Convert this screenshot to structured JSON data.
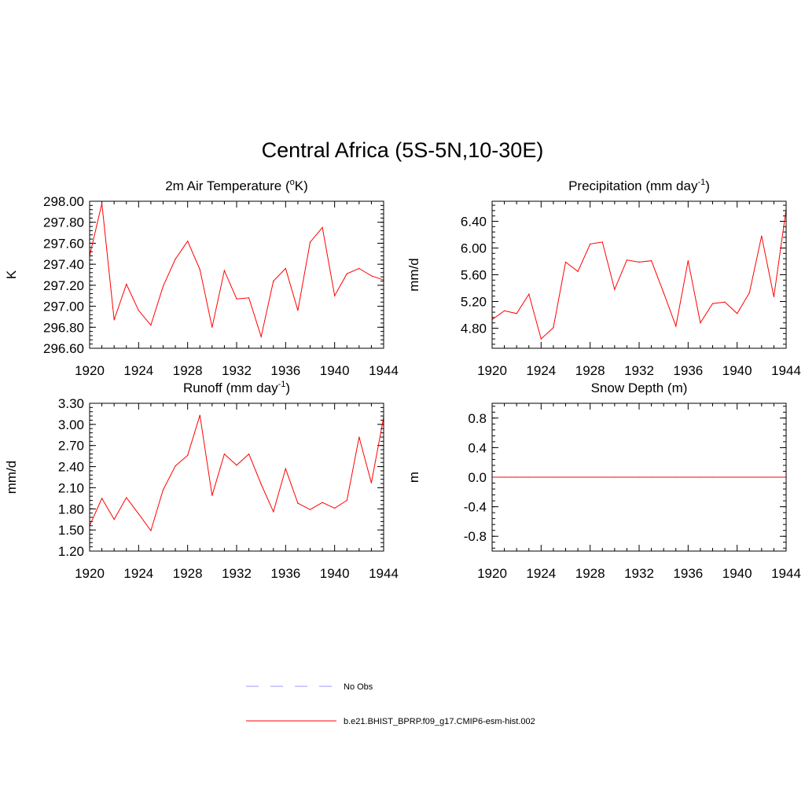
{
  "title": "Central Africa (5S-5N,10-30E)",
  "legend": {
    "items": [
      {
        "label": "No Obs",
        "color": "#9999ff",
        "style": "dashed"
      },
      {
        "label": "b.e21.BHIST_BPRP.f09_g17.CMIP6-esm-hist.002",
        "color": "#ff0000",
        "style": "solid"
      }
    ]
  },
  "chart_data": [
    {
      "type": "line",
      "title": "2m Air Temperature (",
      "title_sup": "o",
      "title_after": "K)",
      "ylabel": "K",
      "xlim": [
        1920,
        1944
      ],
      "ylim": [
        296.6,
        298.0
      ],
      "yticks": [
        296.6,
        296.8,
        297.0,
        297.2,
        297.4,
        297.6,
        297.8,
        298.0
      ],
      "ytick_labels": [
        "296.60",
        "296.80",
        "297.00",
        "297.20",
        "297.40",
        "297.60",
        "297.80",
        "298.00"
      ],
      "xticks": [
        1920,
        1924,
        1928,
        1932,
        1936,
        1940,
        1944
      ],
      "xtick_labels": [
        "1920",
        "1924",
        "1928",
        "1932",
        "1936",
        "1940",
        "1944"
      ],
      "color": "#ff0000",
      "x": [
        1920,
        1921,
        1922,
        1923,
        1924,
        1925,
        1926,
        1927,
        1928,
        1929,
        1930,
        1931,
        1932,
        1933,
        1934,
        1935,
        1936,
        1937,
        1938,
        1939,
        1940,
        1941,
        1942,
        1943,
        1944
      ],
      "values": [
        297.48,
        297.98,
        296.87,
        297.21,
        296.96,
        296.82,
        297.19,
        297.45,
        297.62,
        297.35,
        296.8,
        297.34,
        297.07,
        297.08,
        296.71,
        297.24,
        297.36,
        296.96,
        297.61,
        297.75,
        297.1,
        297.31,
        297.36,
        297.29,
        297.25
      ]
    },
    {
      "type": "line",
      "title": "Precipitation (mm day",
      "title_sup": "-1",
      "title_after": ")",
      "ylabel": "mm/d",
      "xlim": [
        1920,
        1944
      ],
      "ylim": [
        4.5,
        6.7
      ],
      "yticks": [
        4.8,
        5.2,
        5.6,
        6.0,
        6.4
      ],
      "ytick_labels": [
        "4.80",
        "5.20",
        "5.60",
        "6.00",
        "6.40"
      ],
      "xticks": [
        1920,
        1924,
        1928,
        1932,
        1936,
        1940,
        1944
      ],
      "xtick_labels": [
        "1920",
        "1924",
        "1928",
        "1932",
        "1936",
        "1940",
        "1944"
      ],
      "color": "#ff0000",
      "x": [
        1920,
        1921,
        1922,
        1923,
        1924,
        1925,
        1926,
        1927,
        1928,
        1929,
        1930,
        1931,
        1932,
        1933,
        1934,
        1935,
        1936,
        1937,
        1938,
        1939,
        1940,
        1941,
        1942,
        1943,
        1944
      ],
      "values": [
        4.93,
        5.06,
        5.02,
        5.31,
        4.64,
        4.81,
        5.79,
        5.65,
        6.06,
        6.09,
        5.38,
        5.82,
        5.79,
        5.81,
        5.33,
        4.83,
        5.81,
        4.88,
        5.17,
        5.19,
        5.02,
        5.33,
        6.18,
        5.27,
        6.58
      ]
    },
    {
      "type": "line",
      "title": "Runoff (mm day",
      "title_sup": "-1",
      "title_after": ")",
      "ylabel": "mm/d",
      "xlim": [
        1920,
        1944
      ],
      "ylim": [
        1.2,
        3.3
      ],
      "yticks": [
        1.2,
        1.5,
        1.8,
        2.1,
        2.4,
        2.7,
        3.0,
        3.3
      ],
      "ytick_labels": [
        "1.20",
        "1.50",
        "1.80",
        "2.10",
        "2.40",
        "2.70",
        "3.00",
        "3.30"
      ],
      "xticks": [
        1920,
        1924,
        1928,
        1932,
        1936,
        1940,
        1944
      ],
      "xtick_labels": [
        "1920",
        "1924",
        "1928",
        "1932",
        "1936",
        "1940",
        "1944"
      ],
      "color": "#ff0000",
      "x": [
        1920,
        1921,
        1922,
        1923,
        1924,
        1925,
        1926,
        1927,
        1928,
        1929,
        1930,
        1931,
        1932,
        1933,
        1934,
        1935,
        1936,
        1937,
        1938,
        1939,
        1940,
        1941,
        1942,
        1943,
        1944
      ],
      "values": [
        1.56,
        1.95,
        1.65,
        1.96,
        1.73,
        1.49,
        2.07,
        2.41,
        2.56,
        3.13,
        1.99,
        2.58,
        2.42,
        2.58,
        2.15,
        1.76,
        2.37,
        1.88,
        1.79,
        1.89,
        1.81,
        1.92,
        2.82,
        2.17,
        3.1
      ]
    },
    {
      "type": "line",
      "title": "Snow Depth (m)",
      "title_sup": "",
      "title_after": "",
      "ylabel": "m",
      "xlim": [
        1920,
        1944
      ],
      "ylim": [
        -1.0,
        1.0
      ],
      "yticks": [
        -0.8,
        -0.4,
        0.0,
        0.4,
        0.8
      ],
      "ytick_labels": [
        "-0.8",
        "-0.4",
        "0.0",
        "0.4",
        "0.8"
      ],
      "xticks": [
        1920,
        1924,
        1928,
        1932,
        1936,
        1940,
        1944
      ],
      "xtick_labels": [
        "1920",
        "1924",
        "1928",
        "1932",
        "1936",
        "1940",
        "1944"
      ],
      "color": "#ff0000",
      "x": [
        1920,
        1921,
        1922,
        1923,
        1924,
        1925,
        1926,
        1927,
        1928,
        1929,
        1930,
        1931,
        1932,
        1933,
        1934,
        1935,
        1936,
        1937,
        1938,
        1939,
        1940,
        1941,
        1942,
        1943,
        1944
      ],
      "values": [
        0,
        0,
        0,
        0,
        0,
        0,
        0,
        0,
        0,
        0,
        0,
        0,
        0,
        0,
        0,
        0,
        0,
        0,
        0,
        0,
        0,
        0,
        0,
        0,
        0
      ]
    }
  ]
}
